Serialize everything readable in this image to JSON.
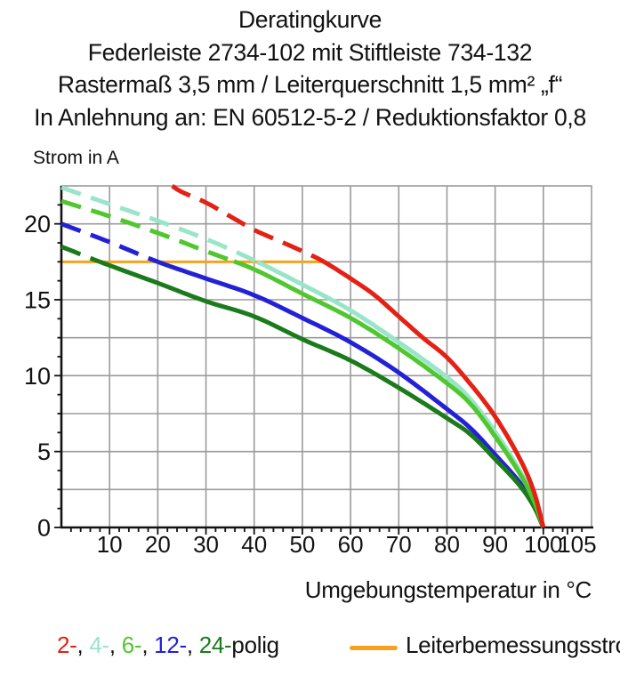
{
  "chart_data": {
    "type": "line",
    "title_lines": [
      "Deratingkurve",
      "Federleiste 2734-102 mit Stiftleiste 734-132",
      "Rastermaß 3,5 mm / Leiterquerschnitt 1,5 mm² „f“",
      "In Anlehnung an: EN 60512-5-2 / Reduktionsfaktor 0,8"
    ],
    "ylabel": "Strom in A",
    "xlabel": "Umgebungstemperatur in °C",
    "xlim": [
      0,
      110
    ],
    "ylim": [
      0,
      22.5
    ],
    "x_ticks_labeled": [
      10,
      20,
      30,
      40,
      50,
      60,
      70,
      80,
      90,
      100,
      105
    ],
    "y_ticks_labeled": [
      0,
      5,
      10,
      15,
      20
    ],
    "x_grid_step": 10,
    "y_grid_step": 2.5,
    "x_minor_tick_step": 2,
    "y_minor_tick_step": 1.25,
    "grid": true,
    "grid_color": "#9b9b9b",
    "axis_color": "#121212",
    "series": [
      {
        "name": "2-polig",
        "pole_label": "2-",
        "color": "#e32114",
        "dash_to_solid_at_t": 54.5,
        "points": [
          [
            23,
            22.5
          ],
          [
            25,
            22.1
          ],
          [
            30,
            21.4
          ],
          [
            35,
            20.5
          ],
          [
            40,
            19.6
          ],
          [
            45,
            18.9
          ],
          [
            50,
            18.2
          ],
          [
            54.5,
            17.5
          ],
          [
            60,
            16.4
          ],
          [
            65,
            15.3
          ],
          [
            70,
            13.9
          ],
          [
            75,
            12.5
          ],
          [
            80,
            11.2
          ],
          [
            85,
            9.4
          ],
          [
            90,
            7.3
          ],
          [
            95,
            4.6
          ],
          [
            98,
            2.4
          ],
          [
            100,
            0
          ]
        ]
      },
      {
        "name": "4-polig",
        "pole_label": "4-",
        "color": "#99e5c9",
        "dash_to_solid_at_t": 40.6,
        "points": [
          [
            0,
            22.4
          ],
          [
            10,
            21.3
          ],
          [
            20,
            20.2
          ],
          [
            30,
            19.0
          ],
          [
            40,
            17.6
          ],
          [
            50,
            16.0
          ],
          [
            60,
            14.3
          ],
          [
            70,
            12.2
          ],
          [
            80,
            9.9
          ],
          [
            85,
            8.4
          ],
          [
            90,
            6.3
          ],
          [
            95,
            3.8
          ],
          [
            98,
            1.9
          ],
          [
            100,
            0
          ]
        ]
      },
      {
        "name": "6-polig",
        "pole_label": "6-",
        "color": "#50c72e",
        "dash_to_solid_at_t": 35.8,
        "points": [
          [
            0,
            21.5
          ],
          [
            10,
            20.5
          ],
          [
            20,
            19.4
          ],
          [
            30,
            18.2
          ],
          [
            40,
            17.0
          ],
          [
            50,
            15.4
          ],
          [
            60,
            13.8
          ],
          [
            70,
            11.8
          ],
          [
            80,
            9.5
          ],
          [
            85,
            8.1
          ],
          [
            90,
            6.0
          ],
          [
            95,
            3.6
          ],
          [
            98,
            1.8
          ],
          [
            100,
            0
          ]
        ]
      },
      {
        "name": "12-polig",
        "pole_label": "12-",
        "color": "#2321d6",
        "dash_to_solid_at_t": 20,
        "points": [
          [
            0,
            20.0
          ],
          [
            10,
            18.8
          ],
          [
            20,
            17.5
          ],
          [
            30,
            16.4
          ],
          [
            40,
            15.3
          ],
          [
            50,
            13.8
          ],
          [
            60,
            12.2
          ],
          [
            70,
            10.2
          ],
          [
            80,
            7.8
          ],
          [
            85,
            6.5
          ],
          [
            90,
            4.8
          ],
          [
            95,
            3.0
          ],
          [
            98,
            1.5
          ],
          [
            100,
            0
          ]
        ]
      },
      {
        "name": "24-polig",
        "pole_label": "24-",
        "color": "#1b7b1b",
        "dash_to_solid_at_t": 8,
        "points": [
          [
            0,
            18.5
          ],
          [
            8,
            17.5
          ],
          [
            20,
            16.1
          ],
          [
            30,
            14.9
          ],
          [
            40,
            13.9
          ],
          [
            50,
            12.4
          ],
          [
            60,
            11.0
          ],
          [
            70,
            9.2
          ],
          [
            80,
            7.2
          ],
          [
            85,
            6.1
          ],
          [
            90,
            4.5
          ],
          [
            95,
            2.8
          ],
          [
            98,
            1.4
          ],
          [
            100,
            0
          ]
        ]
      }
    ],
    "rated_line": {
      "label": "Leiterbemessungsstrom",
      "current_a": 17.5,
      "t_start": 0,
      "t_end": 54.5,
      "color": "#f7a21f"
    },
    "legend": {
      "separator": ", ",
      "suffix": "polig"
    }
  }
}
